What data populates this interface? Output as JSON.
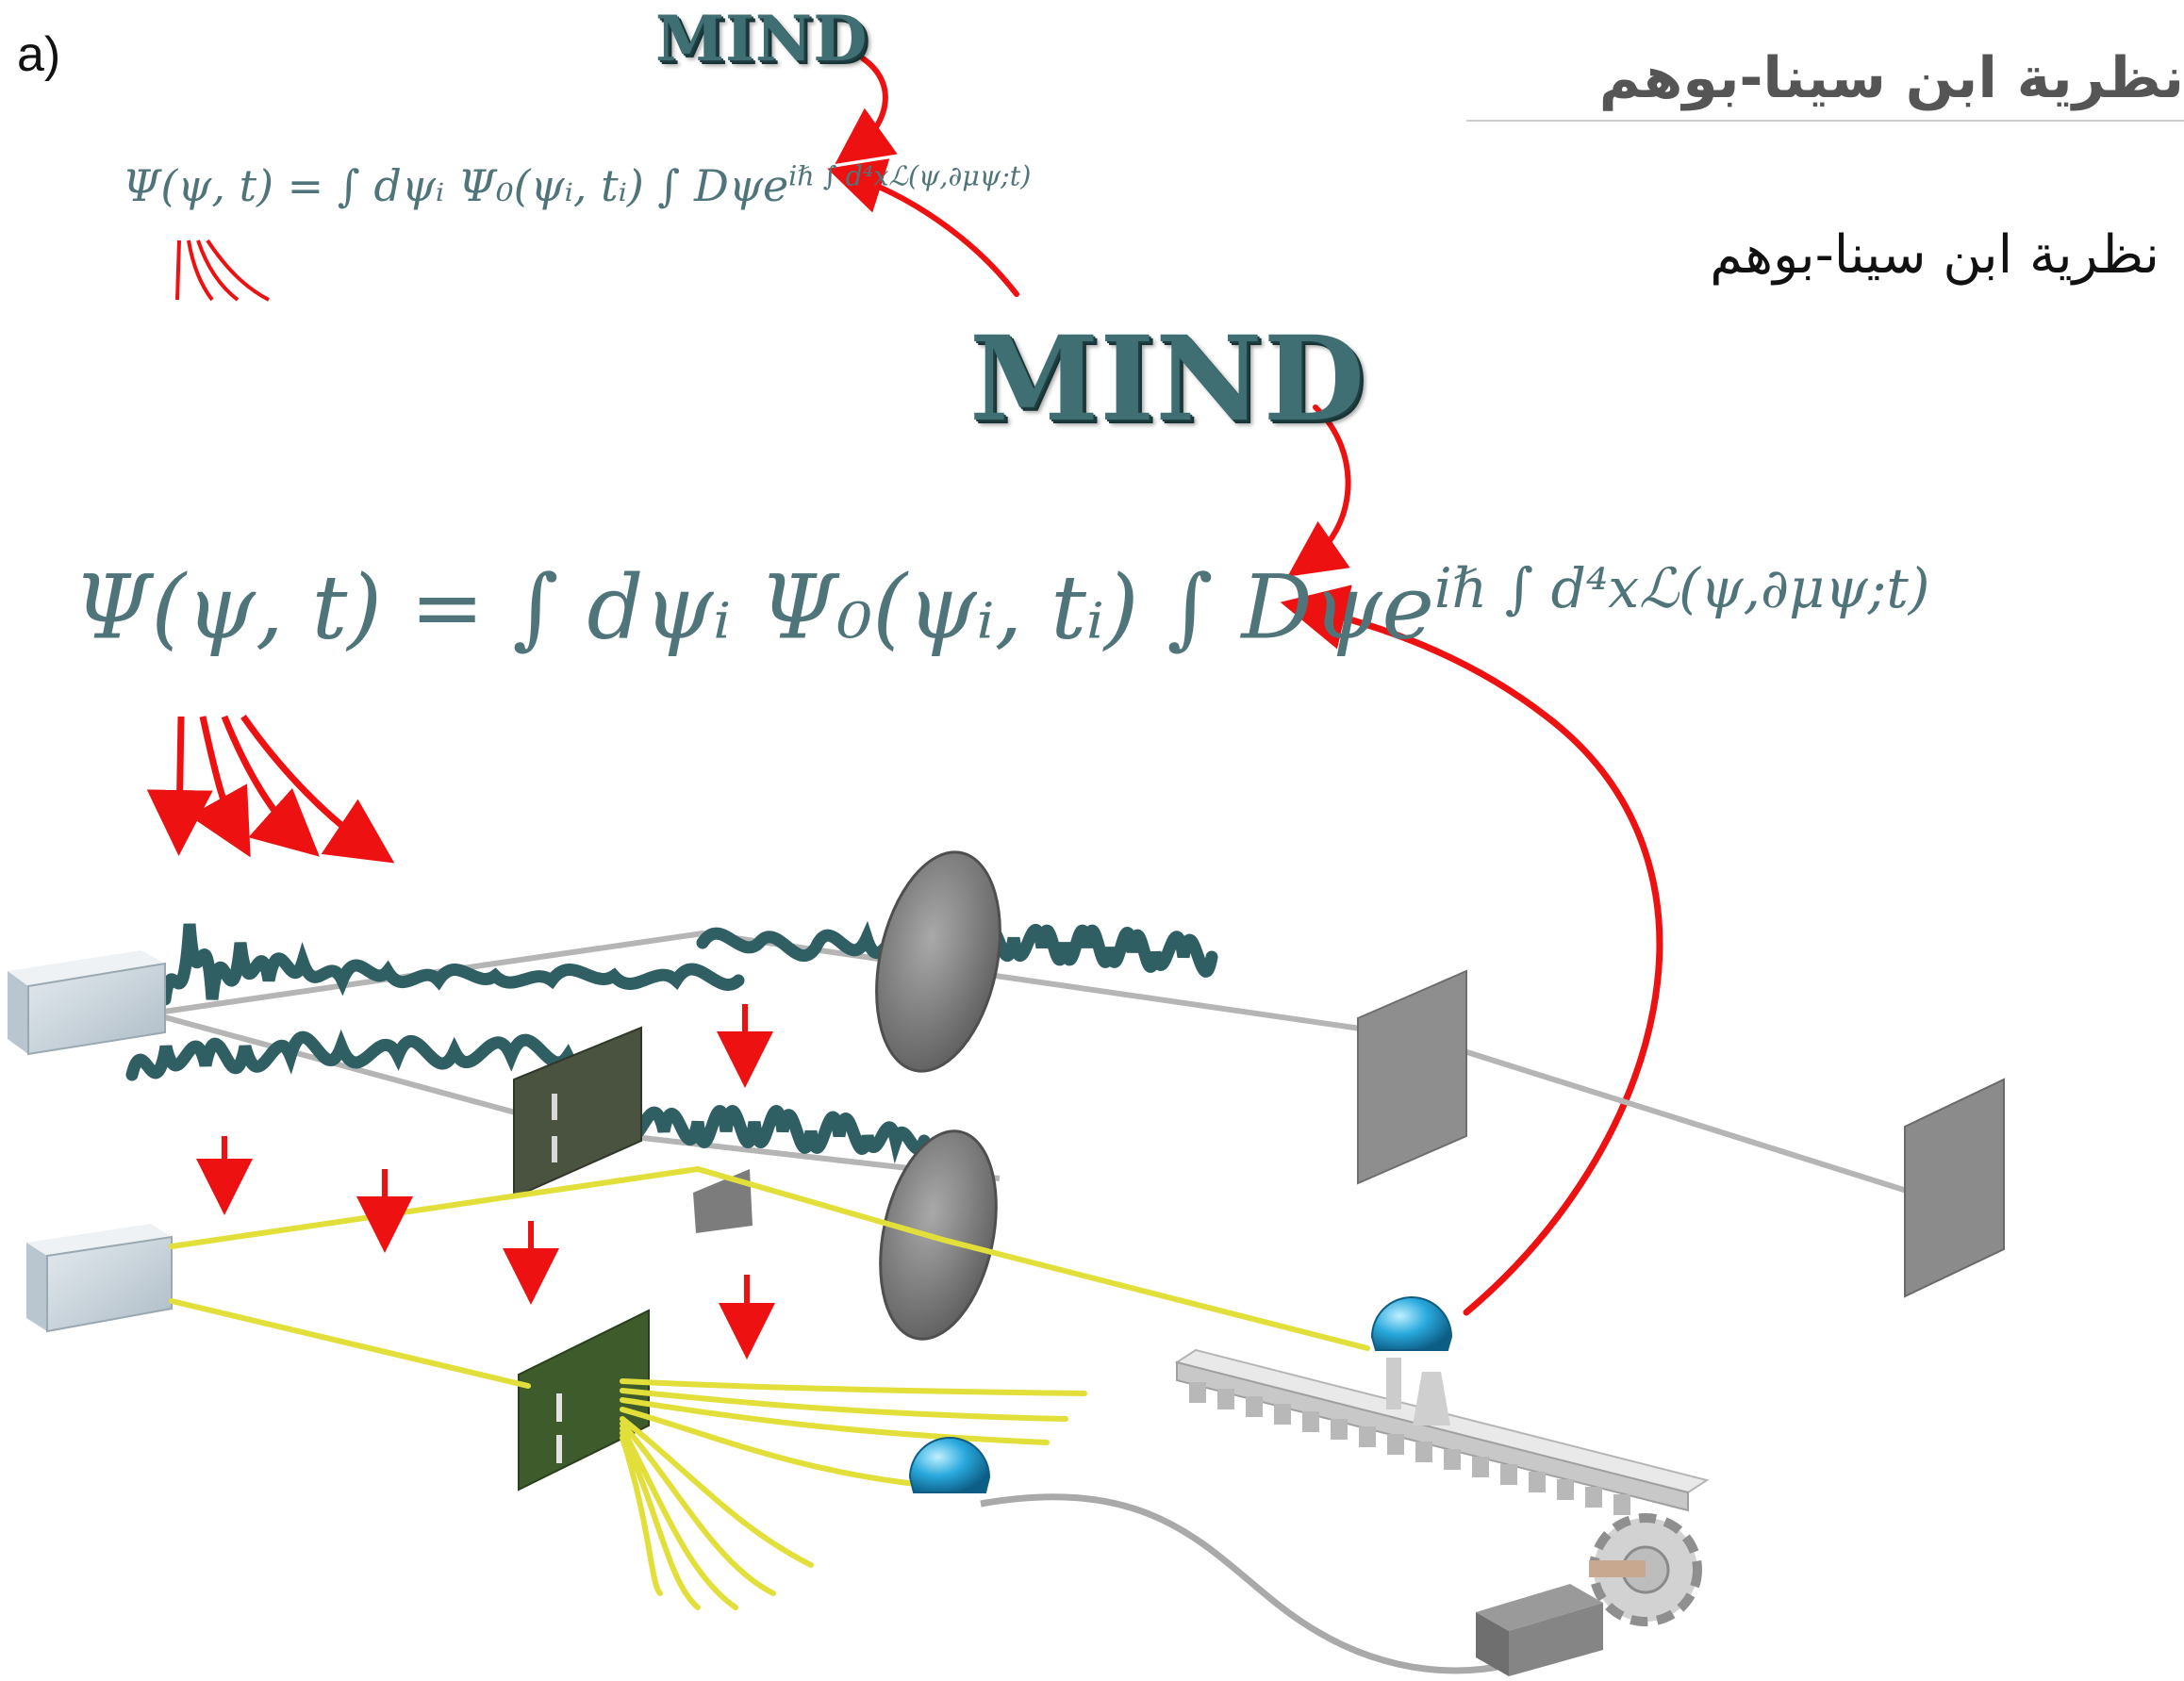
{
  "panel_label": "a)",
  "title_arabic": "نظرية ابن سينا-بوهم",
  "subtitle_arabic": "نظرية ابن سينا-بوهم",
  "mind_label_small": "MIND",
  "mind_label_large": "MIND",
  "equation_small": "Ψ(ψ, t) = ∫ dψᵢ Ψ₀(ψᵢ, tᵢ) ∫ Dψe",
  "equation_small_exponent": "iℏ ∫ d⁴xℒ(ψ,∂μψ;t)",
  "equation_large": "Ψ(ψ, t) = ∫ dψᵢ Ψ₀(ψᵢ, tᵢ) ∫ Dψe",
  "equation_large_exponent": "iℏ ∫ d⁴xℒ(ψ,∂μψ;t)",
  "colors": {
    "arrow": "#ee1111",
    "wave": "#2f5e63",
    "trajectory": "#e3df3a",
    "detector": "#1aa3d8",
    "slit_plate": "#3e4a33",
    "source_box": "#c9d4dc",
    "screen": "#8d8d8d"
  }
}
